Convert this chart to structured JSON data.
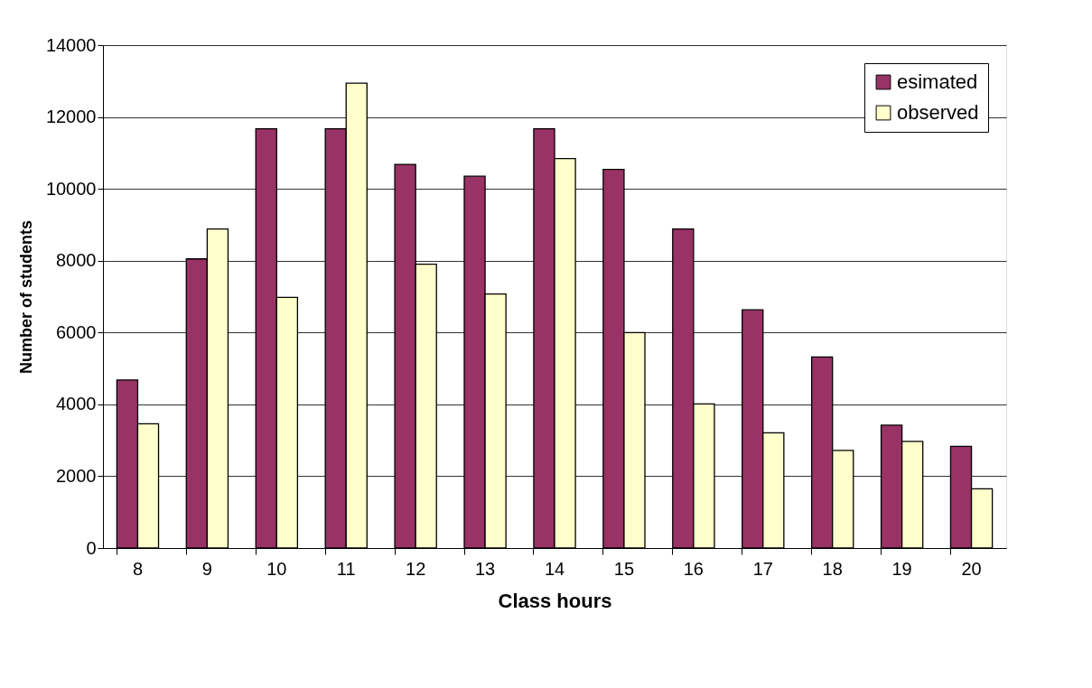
{
  "chart_data": {
    "type": "bar",
    "xlabel": "Class hours",
    "ylabel": "Number of students",
    "categories": [
      "8",
      "9",
      "10",
      "11",
      "12",
      "13",
      "14",
      "15",
      "16",
      "17",
      "18",
      "19",
      "20"
    ],
    "series": [
      {
        "name": "esimated",
        "color": "#993366",
        "values": [
          4680,
          8050,
          11670,
          11670,
          10680,
          10350,
          11670,
          10540,
          8880,
          6630,
          5320,
          3420,
          2830
        ]
      },
      {
        "name": "observed",
        "color": "#ffffcc",
        "values": [
          3460,
          8880,
          6980,
          12940,
          7900,
          7070,
          10840,
          6000,
          4010,
          3210,
          2720,
          2970,
          1650
        ]
      }
    ],
    "ylim": [
      0,
      14000
    ],
    "yticks": [
      0,
      2000,
      4000,
      6000,
      8000,
      10000,
      12000,
      14000
    ],
    "grid": "y",
    "legend": "top right"
  }
}
